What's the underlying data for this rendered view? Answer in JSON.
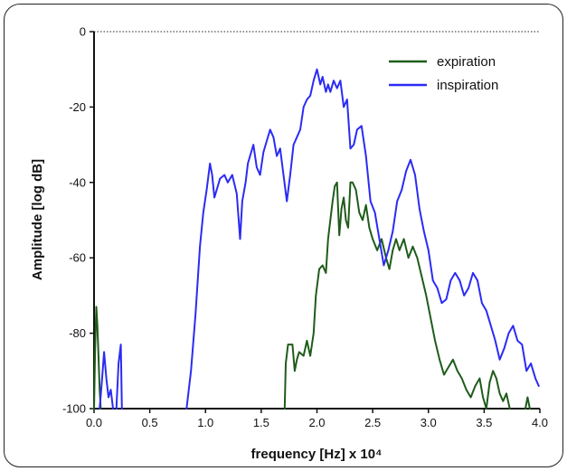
{
  "chart_data": {
    "type": "line",
    "title": "",
    "xlabel": "frequency [Hz] x 10⁴",
    "ylabel": "Amplitude [log dB]",
    "xlim": [
      0,
      4.0
    ],
    "ylim": [
      -100,
      0
    ],
    "xticks": [
      "0.0",
      "0.5",
      "1.0",
      "1.5",
      "2.0",
      "2.5",
      "3.0",
      "3.5",
      "4.0"
    ],
    "yticks": [
      "0",
      "-20",
      "-40",
      "-60",
      "-80",
      "-100"
    ],
    "grid": false,
    "reference_line": {
      "y": 0,
      "style": "dotted"
    },
    "legend_position": "top-right",
    "series": [
      {
        "name": "expiration",
        "color": "#1f5c1a",
        "segments": [
          [
            [
              0.0,
              -100
            ],
            [
              0.01,
              -84
            ],
            [
              0.02,
              -73
            ],
            [
              0.03,
              -78
            ],
            [
              0.04,
              -86
            ],
            [
              0.05,
              -95
            ],
            [
              0.06,
              -100
            ]
          ],
          [
            [
              1.71,
              -100
            ],
            [
              1.72,
              -88
            ],
            [
              1.74,
              -83
            ],
            [
              1.78,
              -83
            ],
            [
              1.8,
              -90
            ],
            [
              1.82,
              -87
            ],
            [
              1.84,
              -85
            ],
            [
              1.88,
              -86
            ],
            [
              1.91,
              -82
            ],
            [
              1.94,
              -86
            ],
            [
              1.97,
              -80
            ],
            [
              1.99,
              -70
            ],
            [
              2.02,
              -63
            ],
            [
              2.05,
              -62
            ],
            [
              2.08,
              -64
            ],
            [
              2.1,
              -55
            ],
            [
              2.12,
              -50
            ],
            [
              2.14,
              -45
            ],
            [
              2.16,
              -41
            ],
            [
              2.18,
              -40
            ],
            [
              2.2,
              -54
            ],
            [
              2.22,
              -47
            ],
            [
              2.24,
              -44
            ],
            [
              2.26,
              -50
            ],
            [
              2.28,
              -52
            ],
            [
              2.3,
              -40
            ],
            [
              2.32,
              -40
            ],
            [
              2.35,
              -42
            ],
            [
              2.38,
              -48
            ],
            [
              2.41,
              -50
            ],
            [
              2.44,
              -46
            ],
            [
              2.47,
              -52
            ],
            [
              2.5,
              -55
            ],
            [
              2.54,
              -58
            ],
            [
              2.58,
              -55
            ],
            [
              2.62,
              -60
            ],
            [
              2.65,
              -63
            ],
            [
              2.68,
              -58
            ],
            [
              2.71,
              -55
            ],
            [
              2.74,
              -58
            ],
            [
              2.78,
              -55
            ],
            [
              2.82,
              -60
            ],
            [
              2.86,
              -57
            ],
            [
              2.9,
              -60
            ],
            [
              2.94,
              -65
            ],
            [
              2.98,
              -70
            ],
            [
              3.02,
              -76
            ],
            [
              3.06,
              -82
            ],
            [
              3.1,
              -87
            ],
            [
              3.14,
              -91
            ],
            [
              3.18,
              -89
            ],
            [
              3.22,
              -87
            ],
            [
              3.26,
              -90
            ],
            [
              3.3,
              -92
            ],
            [
              3.34,
              -95
            ],
            [
              3.38,
              -97
            ],
            [
              3.42,
              -94
            ],
            [
              3.46,
              -92
            ],
            [
              3.49,
              -97
            ],
            [
              3.52,
              -100
            ],
            [
              3.55,
              -93
            ],
            [
              3.58,
              -90
            ],
            [
              3.61,
              -92
            ],
            [
              3.64,
              -96
            ],
            [
              3.67,
              -98
            ],
            [
              3.7,
              -96
            ],
            [
              3.73,
              -100
            ]
          ],
          [
            [
              3.87,
              -100
            ],
            [
              3.89,
              -97
            ],
            [
              3.91,
              -100
            ]
          ]
        ]
      },
      {
        "name": "inspiration",
        "color": "#2b2bf5",
        "segments": [
          [
            [
              0.05,
              -100
            ],
            [
              0.07,
              -93
            ],
            [
              0.09,
              -85
            ],
            [
              0.11,
              -92
            ],
            [
              0.13,
              -97
            ],
            [
              0.15,
              -95
            ],
            [
              0.17,
              -100
            ]
          ],
          [
            [
              0.2,
              -100
            ],
            [
              0.22,
              -88
            ],
            [
              0.24,
              -83
            ],
            [
              0.25,
              -100
            ]
          ],
          [
            [
              0.83,
              -100
            ],
            [
              0.87,
              -90
            ],
            [
              0.91,
              -75
            ],
            [
              0.95,
              -57
            ],
            [
              0.98,
              -48
            ],
            [
              1.01,
              -42
            ],
            [
              1.04,
              -35
            ],
            [
              1.06,
              -38
            ],
            [
              1.08,
              -44
            ],
            [
              1.1,
              -42
            ],
            [
              1.13,
              -39
            ],
            [
              1.17,
              -38
            ],
            [
              1.2,
              -40
            ],
            [
              1.24,
              -38
            ],
            [
              1.28,
              -43
            ],
            [
              1.31,
              -55
            ],
            [
              1.33,
              -45
            ],
            [
              1.36,
              -40
            ],
            [
              1.38,
              -35
            ],
            [
              1.4,
              -33
            ],
            [
              1.43,
              -30
            ],
            [
              1.46,
              -36
            ],
            [
              1.49,
              -38
            ],
            [
              1.52,
              -32
            ],
            [
              1.55,
              -29
            ],
            [
              1.58,
              -26
            ],
            [
              1.61,
              -28
            ],
            [
              1.64,
              -33
            ],
            [
              1.67,
              -31
            ],
            [
              1.7,
              -38
            ],
            [
              1.73,
              -45
            ],
            [
              1.76,
              -38
            ],
            [
              1.79,
              -30
            ],
            [
              1.82,
              -28
            ],
            [
              1.85,
              -26
            ],
            [
              1.88,
              -20
            ],
            [
              1.91,
              -18
            ],
            [
              1.94,
              -17
            ],
            [
              1.97,
              -13
            ],
            [
              2.0,
              -10
            ],
            [
              2.03,
              -14
            ],
            [
              2.05,
              -12
            ],
            [
              2.08,
              -16
            ],
            [
              2.1,
              -14
            ],
            [
              2.12,
              -16
            ],
            [
              2.15,
              -13
            ],
            [
              2.18,
              -15
            ],
            [
              2.21,
              -13
            ],
            [
              2.24,
              -20
            ],
            [
              2.27,
              -18
            ],
            [
              2.3,
              -31
            ],
            [
              2.33,
              -30
            ],
            [
              2.36,
              -26
            ],
            [
              2.4,
              -25
            ],
            [
              2.44,
              -33
            ],
            [
              2.48,
              -45
            ],
            [
              2.52,
              -48
            ],
            [
              2.56,
              -55
            ],
            [
              2.6,
              -62
            ],
            [
              2.64,
              -58
            ],
            [
              2.68,
              -53
            ],
            [
              2.72,
              -45
            ],
            [
              2.76,
              -42
            ],
            [
              2.8,
              -37
            ],
            [
              2.84,
              -34
            ],
            [
              2.88,
              -38
            ],
            [
              2.92,
              -47
            ],
            [
              2.96,
              -53
            ],
            [
              3.0,
              -58
            ],
            [
              3.04,
              -66
            ],
            [
              3.08,
              -68
            ],
            [
              3.12,
              -72
            ],
            [
              3.16,
              -71
            ],
            [
              3.2,
              -66
            ],
            [
              3.24,
              -64
            ],
            [
              3.28,
              -66
            ],
            [
              3.32,
              -70
            ],
            [
              3.36,
              -68
            ],
            [
              3.4,
              -64
            ],
            [
              3.44,
              -66
            ],
            [
              3.48,
              -72
            ],
            [
              3.52,
              -74
            ],
            [
              3.56,
              -78
            ],
            [
              3.6,
              -82
            ],
            [
              3.64,
              -87
            ],
            [
              3.68,
              -84
            ],
            [
              3.72,
              -80
            ],
            [
              3.76,
              -78
            ],
            [
              3.8,
              -82
            ],
            [
              3.84,
              -83
            ],
            [
              3.88,
              -90
            ],
            [
              3.92,
              -88
            ],
            [
              3.96,
              -92
            ],
            [
              3.99,
              -94
            ]
          ]
        ]
      }
    ]
  }
}
